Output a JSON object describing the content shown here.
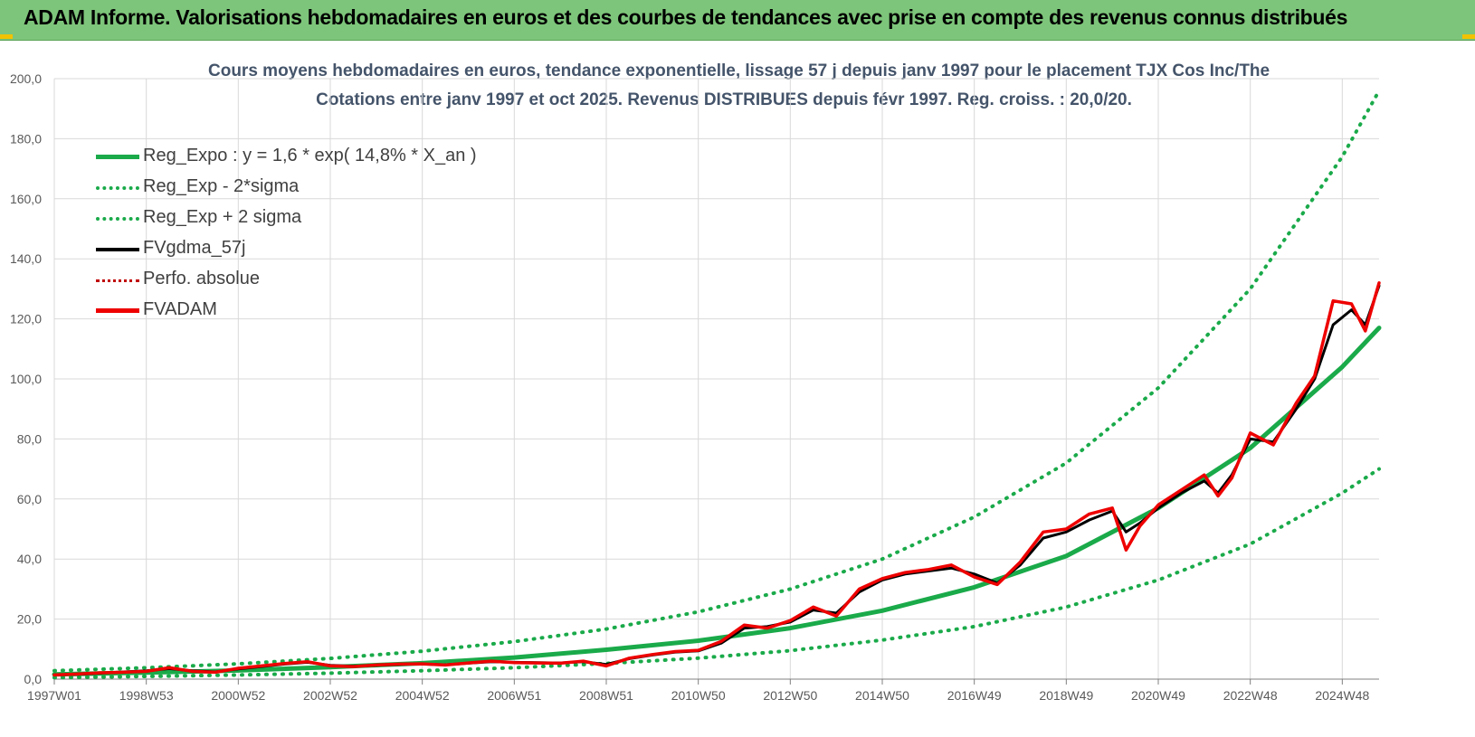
{
  "header": {
    "title": "ADAM Informe. Valorisations hebdomadaires en euros et des courbes de tendances avec prise en compte des revenus connus distribués"
  },
  "colors": {
    "header_bg": "#7dc57a",
    "reg_expo": "#1aaa4a",
    "fvgdma": "#000000",
    "perfo": "#c00000",
    "fvadam": "#ee0000",
    "grid": "#d9d9d9"
  },
  "chart_data": {
    "type": "line",
    "title": "Cours moyens hebdomadaires en euros, tendance exponentielle, lissage 57 j depuis janv 1997 pour le placement TJX Cos Inc/The",
    "subtitle": "Cotations entre janv 1997 et oct 2025. Revenus DISTRIBUES depuis févr 1997. Reg. croiss. : 20,0/20.",
    "xlabel": "",
    "ylabel": "",
    "ylim": [
      0,
      200
    ],
    "xlim": [
      1997.0,
      2025.8
    ],
    "yticks": [
      "0,0",
      "20,0",
      "40,0",
      "60,0",
      "80,0",
      "100,0",
      "120,0",
      "140,0",
      "160,0",
      "180,0",
      "200,0"
    ],
    "xticks": [
      {
        "label": "1997W01",
        "x": 1997.0
      },
      {
        "label": "1998W53",
        "x": 1999.0
      },
      {
        "label": "2000W52",
        "x": 2001.0
      },
      {
        "label": "2002W52",
        "x": 2003.0
      },
      {
        "label": "2004W52",
        "x": 2005.0
      },
      {
        "label": "2006W51",
        "x": 2007.0
      },
      {
        "label": "2008W51",
        "x": 2009.0
      },
      {
        "label": "2010W50",
        "x": 2011.0
      },
      {
        "label": "2012W50",
        "x": 2013.0
      },
      {
        "label": "2014W50",
        "x": 2015.0
      },
      {
        "label": "2016W49",
        "x": 2017.0
      },
      {
        "label": "2018W49",
        "x": 2019.0
      },
      {
        "label": "2020W49",
        "x": 2021.0
      },
      {
        "label": "2022W48",
        "x": 2023.0
      },
      {
        "label": "2024W48",
        "x": 2025.0
      }
    ],
    "grid": true,
    "legend_position": "top-left",
    "series": [
      {
        "name": "Reg_Expo : y = 1,6 * exp( 14,8% *  X_an )",
        "style": "solid-thick",
        "color": "#1aaa4a",
        "x": [
          1997.0,
          1999.0,
          2001.0,
          2003.0,
          2005.0,
          2007.0,
          2009.0,
          2011.0,
          2013.0,
          2015.0,
          2017.0,
          2019.0,
          2021.0,
          2023.0,
          2025.0,
          2025.8
        ],
        "y": [
          1.6,
          2.2,
          2.9,
          4.0,
          5.3,
          7.2,
          9.8,
          12.8,
          17.0,
          22.8,
          30.6,
          41.0,
          57.0,
          77.0,
          104.0,
          117.0
        ]
      },
      {
        "name": "Reg_Exp - 2*sigma",
        "style": "dotted",
        "color": "#1aaa4a",
        "x": [
          1997.0,
          1999.0,
          2001.0,
          2003.0,
          2005.0,
          2007.0,
          2009.0,
          2011.0,
          2013.0,
          2015.0,
          2017.0,
          2019.0,
          2021.0,
          2023.0,
          2025.0,
          2025.8
        ],
        "y": [
          0.5,
          0.9,
          1.4,
          2.0,
          2.8,
          3.8,
          5.2,
          7.0,
          9.5,
          13.0,
          17.5,
          24.0,
          33.0,
          45.0,
          62.0,
          70.0
        ]
      },
      {
        "name": "Reg_Exp + 2 sigma",
        "style": "dotted",
        "color": "#1aaa4a",
        "x": [
          1997.0,
          1999.0,
          2001.0,
          2003.0,
          2005.0,
          2007.0,
          2009.0,
          2011.0,
          2013.0,
          2015.0,
          2017.0,
          2019.0,
          2021.0,
          2023.0,
          2025.0,
          2025.8
        ],
        "y": [
          2.8,
          3.8,
          5.1,
          6.9,
          9.3,
          12.5,
          16.7,
          22.4,
          30.0,
          40.0,
          54.0,
          72.0,
          97.0,
          130.0,
          174.0,
          196.0
        ]
      },
      {
        "name": "FVgdma_57j",
        "style": "solid",
        "color": "#000000",
        "x": [
          1997.0,
          1997.5,
          1998.0,
          1998.5,
          1999.0,
          1999.5,
          2000.0,
          2000.5,
          2001.0,
          2001.5,
          2002.0,
          2002.5,
          2003.0,
          2003.5,
          2004.0,
          2004.5,
          2005.0,
          2005.5,
          2006.0,
          2006.5,
          2007.0,
          2007.5,
          2008.0,
          2008.5,
          2009.0,
          2009.5,
          2010.0,
          2010.5,
          2011.0,
          2011.5,
          2012.0,
          2012.5,
          2013.0,
          2013.5,
          2014.0,
          2014.5,
          2015.0,
          2015.5,
          2016.0,
          2016.5,
          2017.0,
          2017.5,
          2018.0,
          2018.5,
          2019.0,
          2019.5,
          2020.0,
          2020.3,
          2020.6,
          2021.0,
          2021.5,
          2022.0,
          2022.3,
          2022.6,
          2023.0,
          2023.5,
          2024.0,
          2024.4,
          2024.8,
          2025.2,
          2025.5,
          2025.8
        ],
        "y": [
          1.4,
          1.6,
          2.0,
          2.4,
          2.8,
          3.5,
          2.8,
          2.4,
          3.4,
          4.2,
          5.0,
          5.6,
          4.6,
          4.3,
          4.6,
          4.9,
          5.0,
          4.8,
          5.3,
          5.8,
          5.6,
          5.5,
          5.4,
          5.8,
          4.9,
          6.8,
          8.0,
          9.0,
          9.4,
          12.0,
          17.0,
          17.5,
          19.0,
          23.0,
          22.0,
          29.0,
          33.0,
          35.0,
          36.0,
          37.0,
          35.0,
          32.0,
          38.0,
          47.0,
          49.0,
          53.0,
          56.0,
          49.0,
          52.0,
          57.0,
          62.0,
          66.0,
          62.0,
          68.0,
          80.0,
          79.0,
          90.0,
          100.0,
          118.0,
          123.0,
          118.0,
          131.0
        ]
      },
      {
        "name": "Perfo. absolue",
        "style": "dotted",
        "color": "#c00000",
        "x": [
          1997.0,
          1997.5,
          1998.0,
          1998.5,
          1999.0,
          1999.5,
          2000.0,
          2000.5,
          2001.0,
          2001.5,
          2002.0,
          2002.5,
          2003.0,
          2003.5,
          2004.0,
          2004.5,
          2005.0,
          2005.5,
          2006.0,
          2006.5,
          2007.0,
          2007.5,
          2008.0,
          2008.5,
          2009.0,
          2009.5,
          2010.0,
          2010.5,
          2011.0,
          2011.5,
          2012.0,
          2012.5,
          2013.0,
          2013.5,
          2014.0,
          2014.5,
          2015.0,
          2015.5,
          2016.0,
          2016.5,
          2017.0,
          2017.5,
          2018.0,
          2018.5,
          2019.0,
          2019.5,
          2020.0,
          2020.3,
          2020.6,
          2021.0,
          2021.5,
          2022.0,
          2022.3,
          2022.6,
          2023.0,
          2023.5,
          2024.0,
          2024.4,
          2024.8,
          2025.2,
          2025.5,
          2025.8
        ],
        "y": [
          1.4,
          1.7,
          2.1,
          2.3,
          2.6,
          3.8,
          2.6,
          2.3,
          3.6,
          4.4,
          5.2,
          5.8,
          4.4,
          4.2,
          4.7,
          5.0,
          5.1,
          4.7,
          5.4,
          6.0,
          5.5,
          5.4,
          5.3,
          6.0,
          4.4,
          7.0,
          8.2,
          9.2,
          9.6,
          12.6,
          18.0,
          17.0,
          19.5,
          24.0,
          21.0,
          30.0,
          33.5,
          35.5,
          36.5,
          38.0,
          34.0,
          31.5,
          39.0,
          49.0,
          50.0,
          55.0,
          57.0,
          43.0,
          51.0,
          58.0,
          63.0,
          68.0,
          61.0,
          67.0,
          82.0,
          78.0,
          92.0,
          101.0,
          126.0,
          125.0,
          116.0,
          132.0
        ]
      },
      {
        "name": "FVADAM",
        "style": "solid-thick",
        "color": "#ee0000",
        "x": [
          1997.0,
          1997.5,
          1998.0,
          1998.5,
          1999.0,
          1999.5,
          2000.0,
          2000.5,
          2001.0,
          2001.5,
          2002.0,
          2002.5,
          2003.0,
          2003.5,
          2004.0,
          2004.5,
          2005.0,
          2005.5,
          2006.0,
          2006.5,
          2007.0,
          2007.5,
          2008.0,
          2008.5,
          2009.0,
          2009.5,
          2010.0,
          2010.5,
          2011.0,
          2011.5,
          2012.0,
          2012.5,
          2013.0,
          2013.5,
          2014.0,
          2014.5,
          2015.0,
          2015.5,
          2016.0,
          2016.5,
          2017.0,
          2017.5,
          2018.0,
          2018.5,
          2019.0,
          2019.5,
          2020.0,
          2020.3,
          2020.6,
          2021.0,
          2021.5,
          2022.0,
          2022.3,
          2022.6,
          2023.0,
          2023.5,
          2024.0,
          2024.4,
          2024.8,
          2025.2,
          2025.5,
          2025.8
        ],
        "y": [
          1.4,
          1.7,
          2.1,
          2.3,
          2.6,
          3.8,
          2.6,
          2.3,
          3.6,
          4.4,
          5.2,
          5.8,
          4.4,
          4.2,
          4.7,
          5.0,
          5.1,
          4.7,
          5.4,
          6.0,
          5.5,
          5.4,
          5.3,
          6.0,
          4.4,
          7.0,
          8.2,
          9.2,
          9.6,
          12.6,
          18.0,
          17.0,
          19.5,
          24.0,
          21.0,
          30.0,
          33.5,
          35.5,
          36.5,
          38.0,
          34.0,
          31.5,
          39.0,
          49.0,
          50.0,
          55.0,
          57.0,
          43.0,
          51.0,
          58.0,
          63.0,
          68.0,
          61.0,
          67.0,
          82.0,
          78.0,
          92.0,
          101.0,
          126.0,
          125.0,
          116.0,
          132.0
        ]
      }
    ]
  }
}
